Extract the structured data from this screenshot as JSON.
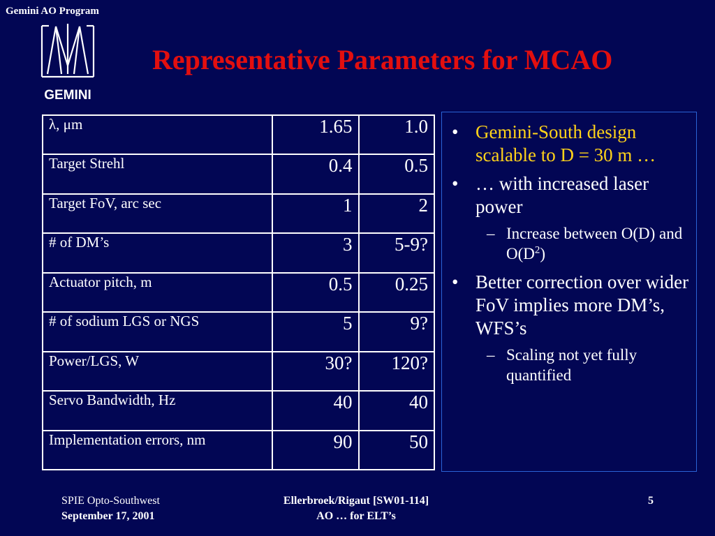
{
  "header": {
    "program_label": "Gemini AO Program",
    "title": "Representative Parameters for MCAO",
    "title_color": "#e30f0f",
    "logo_text": "GEMINI"
  },
  "table": {
    "rows": [
      {
        "label": "λ, μm",
        "v1": "1.65",
        "v2": "1.0"
      },
      {
        "label": "Target Strehl",
        "v1": "0.4",
        "v2": "0.5"
      },
      {
        "label": "Target FoV, arc sec",
        "v1": "1",
        "v2": "2"
      },
      {
        "label": "# of DM’s",
        "v1": "3",
        "v2": "5-9?"
      },
      {
        "label": "Actuator pitch, m",
        "v1": "0.5",
        "v2": "0.25"
      },
      {
        "label": "# of sodium LGS or NGS",
        "v1": "5",
        "v2": "9?"
      },
      {
        "label": "Power/LGS, W",
        "v1": "30?",
        "v2": "120?"
      },
      {
        "label": "Servo Bandwidth, Hz",
        "v1": "40",
        "v2": "40"
      },
      {
        "label": "Implementation errors, nm",
        "v1": "90",
        "v2": "50"
      }
    ]
  },
  "bullets": {
    "b1": "Gemini-South design scalable to D = 30 m …",
    "b2": "… with increased laser power",
    "b2_sub_pre": "Increase between O(D) and O(D",
    "b2_sub_sup": "2",
    "b2_sub_post": ")",
    "b3": "Better correction over wider FoV implies more DM’s, WFS’s",
    "b3_sub": "Scaling not yet fully quantified",
    "bullet_char": "•",
    "dash_char": "–",
    "highlight_color": "#ffd21a"
  },
  "footer": {
    "left_line1": "SPIE Opto-Southwest",
    "left_line2": "September 17, 2001",
    "center_line1": "Ellerbroek/Rigaut [SW01-114]",
    "center_line2": "AO … for ELT’s",
    "page_number": "5"
  },
  "colors": {
    "background": "#020654",
    "panel_border": "#2a63d6"
  }
}
